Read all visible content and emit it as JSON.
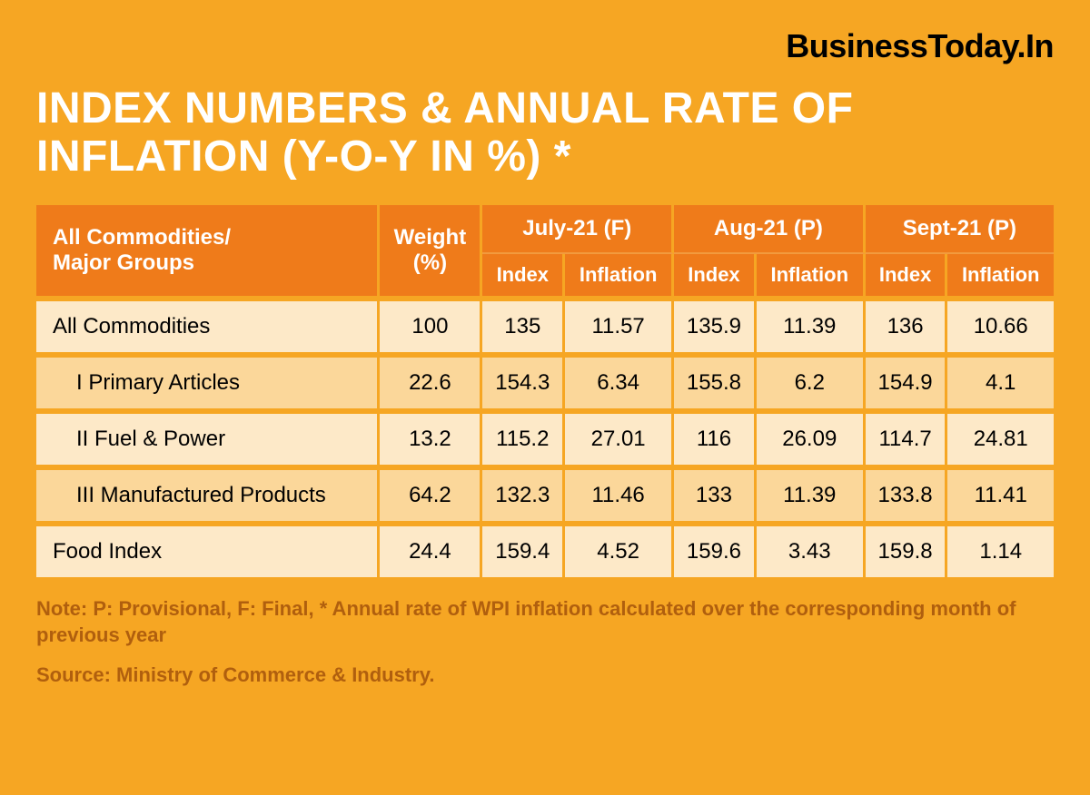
{
  "brand": "BusinessToday.In",
  "title": "INDEX NUMBERS & ANNUAL RATE OF INFLATION (Y-O-Y IN %) *",
  "colors": {
    "background": "#f6a623",
    "header_bg": "#ef7b1a",
    "header_divider": "#f29a3e",
    "row_light": "#fde9c8",
    "row_dark": "#fbd79a",
    "brand_text": "#000000",
    "note_text": "#b05f0e"
  },
  "columns": {
    "group_label": "All Commodities/\nMajor Groups",
    "weight_label": "Weight (%)",
    "periods": [
      {
        "label": "July-21 (F)",
        "sub": [
          "Index",
          "Inflation"
        ]
      },
      {
        "label": "Aug-21 (P)",
        "sub": [
          "Index",
          "Inflation"
        ]
      },
      {
        "label": "Sept-21 (P)",
        "sub": [
          "Index",
          "Inflation"
        ]
      }
    ]
  },
  "rows": [
    {
      "label": "All Commodities",
      "indent": false,
      "weight": "100",
      "vals": [
        "135",
        "11.57",
        "135.9",
        "11.39",
        "136",
        "10.66"
      ]
    },
    {
      "label": "I Primary Articles",
      "indent": true,
      "weight": "22.6",
      "vals": [
        "154.3",
        "6.34",
        "155.8",
        "6.2",
        "154.9",
        "4.1"
      ]
    },
    {
      "label": "II Fuel & Power",
      "indent": true,
      "weight": "13.2",
      "vals": [
        "115.2",
        "27.01",
        "116",
        "26.09",
        "114.7",
        "24.81"
      ]
    },
    {
      "label": "III Manufactured Products",
      "indent": true,
      "weight": "64.2",
      "vals": [
        "132.3",
        "11.46",
        "133",
        "11.39",
        "133.8",
        "11.41"
      ]
    },
    {
      "label": "Food Index",
      "indent": false,
      "weight": "24.4",
      "vals": [
        "159.4",
        "4.52",
        "159.6",
        "3.43",
        "159.8",
        "1.14"
      ]
    }
  ],
  "note": "Note: P: Provisional, F: Final, * Annual rate of WPI inflation calculated over the corresponding month of previous year",
  "source": "Source: Ministry of Commerce & Industry."
}
